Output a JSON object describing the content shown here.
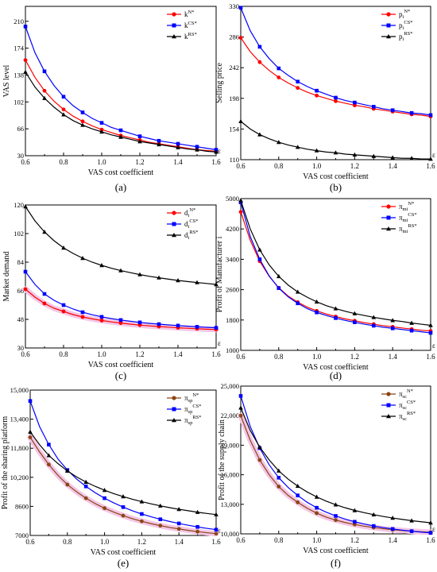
{
  "chart_data": [
    {
      "type": "line",
      "panel_label": "(a)",
      "xlabel": "VAS cost coefficient",
      "ylabel": "VAS level",
      "axis_end_label": "ε",
      "xlim": [
        0.6,
        1.6
      ],
      "ylim": [
        30,
        230
      ],
      "xticks": [
        "0.6",
        "0.8",
        "1.0",
        "1.2",
        "1.4",
        "1.6"
      ],
      "yticks": [
        "30",
        "66",
        "102",
        "138",
        "174",
        "210"
      ],
      "ytick_values": [
        30,
        66,
        102,
        138,
        174,
        210
      ],
      "x": [
        0.6,
        0.65,
        0.7,
        0.75,
        0.8,
        0.85,
        0.9,
        0.95,
        1.0,
        1.05,
        1.1,
        1.15,
        1.2,
        1.25,
        1.3,
        1.35,
        1.4,
        1.45,
        1.5,
        1.55,
        1.6
      ],
      "legend_position": "top-right",
      "series": [
        {
          "name": "k",
          "sup": "N*",
          "color": "#ff0000",
          "marker": "circle",
          "values": [
            158,
            135,
            117,
            103,
            92,
            83,
            76,
            70,
            65,
            61,
            57,
            54,
            51,
            48,
            46,
            44,
            42,
            40,
            38,
            37,
            36
          ]
        },
        {
          "name": "k",
          "sup": "CS*",
          "color": "#0000ff",
          "marker": "square",
          "values": [
            203,
            168,
            143,
            124,
            109,
            97,
            88,
            80,
            74,
            68,
            64,
            60,
            56,
            53,
            50,
            48,
            46,
            44,
            42,
            40,
            38
          ]
        },
        {
          "name": "k",
          "sup": "RS*",
          "color": "#000000",
          "marker": "triangle",
          "values": [
            142,
            122,
            107,
            95,
            85,
            77,
            71,
            66,
            62,
            58,
            55,
            52,
            49,
            47,
            45,
            43,
            41,
            39,
            38,
            36,
            35
          ]
        }
      ]
    },
    {
      "type": "line",
      "panel_label": "(b)",
      "xlabel": "VAS cost coefficient",
      "ylabel": "Selling price",
      "axis_end_label": "ε",
      "xlim": [
        0.6,
        1.6
      ],
      "ylim": [
        110,
        330
      ],
      "xticks": [
        "0.6",
        "0.8",
        "1.0",
        "1.2",
        "1.4",
        "1.6"
      ],
      "yticks": [
        "110",
        "154",
        "198",
        "242",
        "286",
        "330"
      ],
      "ytick_values": [
        110,
        154,
        198,
        242,
        286,
        330
      ],
      "x": [
        0.6,
        0.65,
        0.7,
        0.75,
        0.8,
        0.85,
        0.9,
        0.95,
        1.0,
        1.05,
        1.1,
        1.15,
        1.2,
        1.25,
        1.3,
        1.35,
        1.4,
        1.45,
        1.5,
        1.55,
        1.6
      ],
      "legend_position": "top-right",
      "series": [
        {
          "name": "p",
          "sub": "i",
          "sup": "N*",
          "color": "#ff0000",
          "marker": "circle",
          "values": [
            285,
            265,
            250,
            238,
            228,
            220,
            213,
            207,
            202,
            198,
            194,
            191,
            188,
            186,
            183,
            181,
            179,
            177,
            175,
            174,
            172
          ]
        },
        {
          "name": "p",
          "sub": "i",
          "sup": "CS*",
          "color": "#0000ff",
          "marker": "square",
          "values": [
            328,
            295,
            272,
            255,
            241,
            231,
            222,
            215,
            209,
            204,
            199,
            195,
            192,
            189,
            186,
            183,
            181,
            179,
            177,
            176,
            174
          ]
        },
        {
          "name": "p",
          "sub": "i",
          "sup": "RS*",
          "color": "#000000",
          "marker": "triangle",
          "values": [
            165,
            154,
            146,
            140,
            135,
            131,
            128,
            125,
            123,
            121,
            120,
            118,
            117,
            116,
            115,
            114,
            113,
            112,
            112,
            111,
            111
          ]
        }
      ]
    },
    {
      "type": "line",
      "panel_label": "(c)",
      "xlabel": "VAS cost coefficient",
      "ylabel": "Market demand",
      "axis_end_label": "ε",
      "xlim": [
        0.6,
        1.6
      ],
      "ylim": [
        30,
        120
      ],
      "xticks": [
        "0.6",
        "0.8",
        "1.0",
        "1.2",
        "1.4",
        "1.6"
      ],
      "yticks": [
        "30",
        "48",
        "66",
        "84",
        "102",
        "120"
      ],
      "ytick_values": [
        30,
        48,
        66,
        84,
        102,
        120
      ],
      "x": [
        0.6,
        0.65,
        0.7,
        0.75,
        0.8,
        0.85,
        0.9,
        0.95,
        1.0,
        1.05,
        1.1,
        1.15,
        1.2,
        1.25,
        1.3,
        1.35,
        1.4,
        1.45,
        1.5,
        1.55,
        1.6
      ],
      "legend_position": "top-right",
      "series": [
        {
          "name": "d",
          "sub": "i",
          "sup": "N*",
          "color": "#ff0000",
          "marker": "circle",
          "values": [
            67,
            62,
            58,
            55,
            53,
            51,
            49.5,
            48.3,
            47.3,
            46.4,
            45.7,
            45,
            44.4,
            43.9,
            43.5,
            43.1,
            42.7,
            42.4,
            42.1,
            41.8,
            41.6
          ]
        },
        {
          "name": "d",
          "sub": "i",
          "sup": "CS*",
          "color": "#0000ff",
          "marker": "square",
          "values": [
            78,
            70,
            64,
            60,
            57,
            54.5,
            52.5,
            50.9,
            49.6,
            48.5,
            47.6,
            46.8,
            46.1,
            45.5,
            45,
            44.5,
            44.1,
            43.7,
            43.3,
            43,
            42.7
          ]
        },
        {
          "name": "d",
          "sub": "i",
          "sup": "RS*",
          "color": "#000000",
          "marker": "triangle",
          "values": [
            119,
            110,
            103,
            97.5,
            93,
            89.5,
            86.5,
            84,
            82,
            80.2,
            78.7,
            77.4,
            76.2,
            75.1,
            74.2,
            73.3,
            72.5,
            71.8,
            71.2,
            70.6,
            70
          ]
        }
      ]
    },
    {
      "type": "line",
      "panel_label": "(d)",
      "xlabel": "VAS cost coefficient",
      "ylabel": "Profit of Manufacturer i",
      "axis_end_label": "ε",
      "xlim": [
        0.6,
        1.6
      ],
      "ylim": [
        1000,
        5000
      ],
      "xticks": [
        "0.6",
        "0.8",
        "1.0",
        "1.2",
        "1.4",
        "1.6"
      ],
      "yticks": [
        "1000",
        "1800",
        "2600",
        "3400",
        "4200",
        "5000"
      ],
      "ytick_values": [
        1000,
        1800,
        2600,
        3400,
        4200,
        5000
      ],
      "x": [
        0.6,
        0.65,
        0.7,
        0.75,
        0.8,
        0.85,
        0.9,
        0.95,
        1.0,
        1.05,
        1.1,
        1.15,
        1.2,
        1.25,
        1.3,
        1.35,
        1.4,
        1.45,
        1.5,
        1.55,
        1.6
      ],
      "legend_position": "top-right",
      "series": [
        {
          "name": "π",
          "sub": "mi",
          "sup": "N*",
          "color": "#ff0000",
          "marker": "circle",
          "values": [
            4650,
            3900,
            3350,
            2950,
            2650,
            2430,
            2270,
            2140,
            2040,
            1960,
            1890,
            1830,
            1780,
            1730,
            1690,
            1650,
            1620,
            1590,
            1560,
            1530,
            1510
          ]
        },
        {
          "name": "π",
          "sub": "mi",
          "sup": "CS*",
          "color": "#0000ff",
          "marker": "square",
          "values": [
            4900,
            4000,
            3400,
            2960,
            2640,
            2410,
            2240,
            2100,
            2000,
            1920,
            1850,
            1790,
            1740,
            1690,
            1650,
            1610,
            1580,
            1550,
            1520,
            1490,
            1460
          ]
        },
        {
          "name": "π",
          "sub": "mi",
          "sup": "RS*",
          "color": "#000000",
          "marker": "triangle",
          "values": [
            4950,
            4200,
            3650,
            3250,
            2950,
            2720,
            2540,
            2400,
            2280,
            2180,
            2100,
            2030,
            1970,
            1920,
            1870,
            1830,
            1790,
            1760,
            1720,
            1690,
            1660
          ]
        }
      ]
    },
    {
      "type": "line",
      "panel_label": "(e)",
      "xlabel": "VAS cost coefficient",
      "ylabel": "Profit of the sharing platform",
      "axis_end_label": "ε",
      "xlim": [
        0.6,
        1.6
      ],
      "ylim": [
        7000,
        15000
      ],
      "xticks": [
        "0.6",
        "0.8",
        "1.0",
        "1.2",
        "1.4",
        "1.6"
      ],
      "yticks": [
        "7000",
        "8600",
        "10,200",
        "11,800",
        "13,400",
        "15,000"
      ],
      "ytick_values": [
        7000,
        8600,
        10200,
        11800,
        13400,
        15000
      ],
      "x": [
        0.6,
        0.65,
        0.7,
        0.75,
        0.8,
        0.85,
        0.9,
        0.95,
        1.0,
        1.05,
        1.1,
        1.15,
        1.2,
        1.25,
        1.3,
        1.35,
        1.4,
        1.45,
        1.5,
        1.55,
        1.6
      ],
      "legend_position": "top-right",
      "series": [
        {
          "name": "π",
          "sub": "sp",
          "sup": "N*",
          "color": "#8b4513",
          "marker": "circle",
          "values": [
            12400,
            11600,
            10900,
            10300,
            9800,
            9400,
            9050,
            8750,
            8500,
            8280,
            8090,
            7920,
            7780,
            7650,
            7540,
            7440,
            7360,
            7280,
            7210,
            7150,
            7100
          ]
        },
        {
          "name": "π",
          "sub": "sp",
          "sup": "CS*",
          "color": "#0000ff",
          "marker": "square",
          "values": [
            14400,
            13000,
            12000,
            11200,
            10600,
            10100,
            9700,
            9350,
            9050,
            8790,
            8560,
            8360,
            8180,
            8030,
            7890,
            7770,
            7660,
            7560,
            7470,
            7390,
            7320
          ]
        },
        {
          "name": "π",
          "sub": "sp",
          "sup": "RS*",
          "color": "#000000",
          "marker": "triangle",
          "values": [
            12700,
            12000,
            11400,
            10950,
            10550,
            10220,
            9940,
            9700,
            9490,
            9300,
            9140,
            8990,
            8860,
            8740,
            8630,
            8530,
            8440,
            8360,
            8280,
            8210,
            8150
          ]
        }
      ]
    },
    {
      "type": "line",
      "panel_label": "(f)",
      "xlabel": "VAS cost coefficient",
      "ylabel": "Profit of the supply chain",
      "axis_end_label": "ε",
      "xlim": [
        0.6,
        1.6
      ],
      "ylim": [
        10000,
        25000
      ],
      "xticks": [
        "0.6",
        "0.8",
        "1.0",
        "1.2",
        "1.4",
        "1.6"
      ],
      "yticks": [
        "10,000",
        "13,000",
        "16,000",
        "19,000",
        "22,000",
        "25,000"
      ],
      "ytick_values": [
        10000,
        13000,
        16000,
        19000,
        22000,
        25000
      ],
      "x": [
        0.6,
        0.65,
        0.7,
        0.75,
        0.8,
        0.85,
        0.9,
        0.95,
        1.0,
        1.05,
        1.1,
        1.15,
        1.2,
        1.25,
        1.3,
        1.35,
        1.4,
        1.45,
        1.5,
        1.55,
        1.6
      ],
      "legend_position": "top-right",
      "series": [
        {
          "name": "π",
          "sub": "sc",
          "sup": "N*",
          "color": "#8b4513",
          "marker": "circle",
          "values": [
            22000,
            19500,
            17500,
            16000,
            14800,
            13900,
            13200,
            12600,
            12100,
            11700,
            11400,
            11150,
            10950,
            10780,
            10640,
            10520,
            10420,
            10340,
            10270,
            10210,
            10160
          ]
        },
        {
          "name": "π",
          "sub": "sc",
          "sup": "CS*",
          "color": "#0000ff",
          "marker": "square",
          "values": [
            24000,
            20900,
            18700,
            17000,
            15700,
            14700,
            13900,
            13200,
            12650,
            12200,
            11820,
            11500,
            11230,
            11000,
            10800,
            10640,
            10500,
            10380,
            10270,
            10180,
            10100
          ]
        },
        {
          "name": "π",
          "sub": "sc",
          "sup": "RS*",
          "color": "#000000",
          "marker": "triangle",
          "values": [
            22800,
            20500,
            18800,
            17500,
            16400,
            15550,
            14850,
            14250,
            13750,
            13320,
            12960,
            12650,
            12380,
            12150,
            11950,
            11770,
            11610,
            11470,
            11340,
            11230,
            11130
          ]
        }
      ]
    }
  ]
}
